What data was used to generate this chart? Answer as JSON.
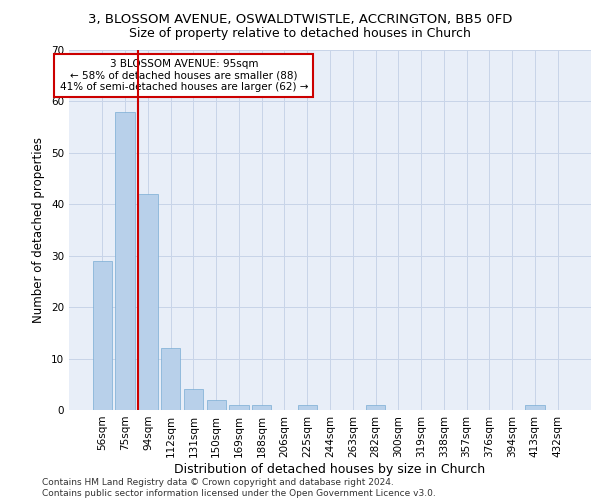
{
  "title1": "3, BLOSSOM AVENUE, OSWALDTWISTLE, ACCRINGTON, BB5 0FD",
  "title2": "Size of property relative to detached houses in Church",
  "xlabel": "Distribution of detached houses by size in Church",
  "ylabel": "Number of detached properties",
  "categories": [
    "56sqm",
    "75sqm",
    "94sqm",
    "112sqm",
    "131sqm",
    "150sqm",
    "169sqm",
    "188sqm",
    "206sqm",
    "225sqm",
    "244sqm",
    "263sqm",
    "282sqm",
    "300sqm",
    "319sqm",
    "338sqm",
    "357sqm",
    "376sqm",
    "394sqm",
    "413sqm",
    "432sqm"
  ],
  "values": [
    29,
    58,
    42,
    12,
    4,
    2,
    1,
    1,
    0,
    1,
    0,
    0,
    1,
    0,
    0,
    0,
    0,
    0,
    0,
    1,
    0
  ],
  "bar_color": "#b8d0ea",
  "bar_edge_color": "#7aadd4",
  "grid_color": "#c8d4e8",
  "background_color": "#e8eef8",
  "vline_color": "#cc0000",
  "annotation_line1": "3 BLOSSOM AVENUE: 95sqm",
  "annotation_line2": "← 58% of detached houses are smaller (88)",
  "annotation_line3": "41% of semi-detached houses are larger (62) →",
  "annotation_box_color": "#cc0000",
  "ylim": [
    0,
    70
  ],
  "yticks": [
    0,
    10,
    20,
    30,
    40,
    50,
    60,
    70
  ],
  "footer": "Contains HM Land Registry data © Crown copyright and database right 2024.\nContains public sector information licensed under the Open Government Licence v3.0.",
  "title1_fontsize": 9.5,
  "title2_fontsize": 9,
  "xlabel_fontsize": 9,
  "ylabel_fontsize": 8.5,
  "tick_fontsize": 7.5,
  "annotation_fontsize": 7.5,
  "footer_fontsize": 6.5
}
